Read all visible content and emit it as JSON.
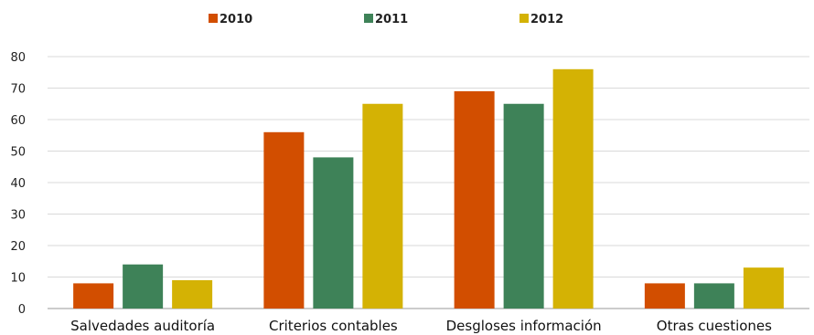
{
  "chart_data": {
    "type": "bar",
    "categories": [
      "Salvedades auditoría",
      "Criterios contables",
      "Desgloses información",
      "Otras cuestiones"
    ],
    "series": [
      {
        "name": "2010",
        "color": "#D24E00",
        "values": [
          8,
          56,
          69,
          8
        ]
      },
      {
        "name": "2011",
        "color": "#3E8258",
        "values": [
          14,
          48,
          65,
          8
        ]
      },
      {
        "name": "2012",
        "color": "#D4B204",
        "values": [
          9,
          65,
          76,
          13
        ]
      }
    ],
    "yticks": [
      "0",
      "10",
      "20",
      "30",
      "40",
      "50",
      "60",
      "70",
      "80"
    ],
    "ylim": [
      0,
      80
    ],
    "grid": true,
    "legend_position": "top-center"
  }
}
